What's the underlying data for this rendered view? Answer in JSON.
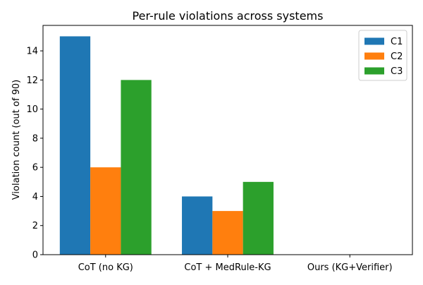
{
  "chart_data": {
    "type": "bar",
    "title": "Per-rule violations across systems",
    "xlabel": "",
    "ylabel": "Violation count (out of 90)",
    "categories": [
      "CoT (no KG)",
      "CoT + MedRule-KG",
      "Ours (KG+Verifier)"
    ],
    "series": [
      {
        "name": "C1",
        "color": "#1f77b4",
        "values": [
          15,
          4,
          0
        ]
      },
      {
        "name": "C2",
        "color": "#ff7f0e",
        "values": [
          6,
          3,
          0
        ]
      },
      {
        "name": "C3",
        "color": "#2ca02c",
        "values": [
          12,
          5,
          0
        ]
      }
    ],
    "ylim": [
      0,
      15.75
    ],
    "yticks": [
      "0",
      "2",
      "4",
      "6",
      "8",
      "10",
      "12",
      "14"
    ],
    "grid": false,
    "legend_position": "top-right"
  }
}
